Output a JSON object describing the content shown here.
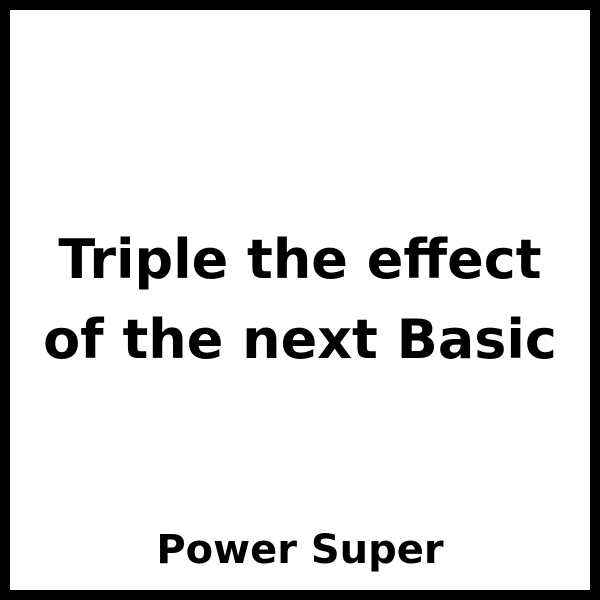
{
  "card": {
    "effect_lines": [
      "Triple the effect",
      "of the next Basic"
    ],
    "type_label": "Power Super"
  },
  "colors": {
    "border": "#000000",
    "background": "#ffffff",
    "text": "#000000"
  }
}
